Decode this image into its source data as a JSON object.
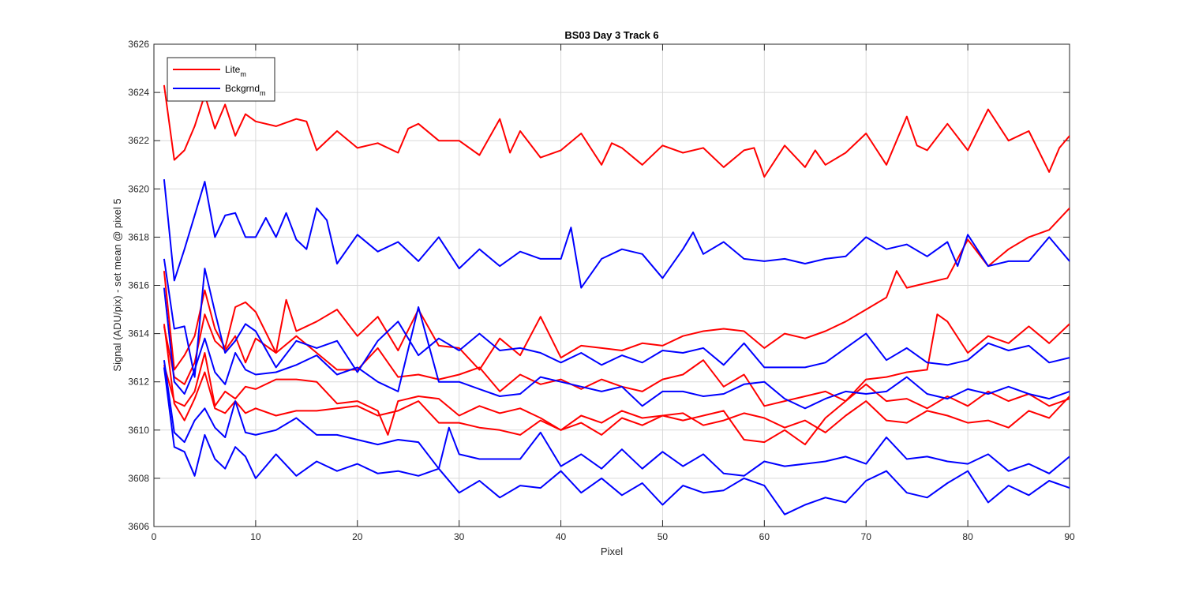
{
  "chart_data": {
    "type": "line",
    "title": "BS03 Day 3 Track 6",
    "xlabel": "Pixel",
    "ylabel": "Signal (ADU/pix) - set mean @ pixel 5",
    "xlim": [
      0,
      90
    ],
    "ylim": [
      3606,
      3626
    ],
    "xticks": [
      0,
      10,
      20,
      30,
      40,
      50,
      60,
      70,
      80,
      90
    ],
    "yticks": [
      3606,
      3608,
      3610,
      3612,
      3614,
      3616,
      3618,
      3620,
      3622,
      3624,
      3626
    ],
    "grid": true,
    "legend_position": "top-left",
    "legend": [
      {
        "label": "Lite",
        "sub": "m",
        "color": "#ff0000"
      },
      {
        "label": "Bckgrnd",
        "sub": "m",
        "color": "#0000ff"
      }
    ],
    "series": [
      {
        "group": "Lite",
        "color": "#ff0000",
        "x": [
          1,
          2,
          3,
          4,
          5,
          6,
          7,
          8,
          9,
          10,
          12,
          14,
          15,
          16,
          18,
          20,
          22,
          24,
          25,
          26,
          28,
          30,
          32,
          34,
          35,
          36,
          38,
          40,
          42,
          44,
          45,
          46,
          48,
          50,
          52,
          54,
          56,
          58,
          59,
          60,
          62,
          64,
          65,
          66,
          68,
          70,
          72,
          74,
          75,
          76,
          78,
          80,
          82,
          84,
          86,
          88,
          89,
          90
        ],
        "y": [
          3624.3,
          3621.2,
          3621.6,
          3622.6,
          3623.9,
          3622.5,
          3623.5,
          3622.2,
          3623.1,
          3622.8,
          3622.6,
          3622.9,
          3622.8,
          3621.6,
          3622.4,
          3621.7,
          3621.9,
          3621.5,
          3622.5,
          3622.7,
          3622.0,
          3622.0,
          3621.4,
          3622.9,
          3621.5,
          3622.4,
          3621.3,
          3621.6,
          3622.3,
          3621.0,
          3621.9,
          3621.7,
          3621.0,
          3621.8,
          3621.5,
          3621.7,
          3620.9,
          3621.6,
          3621.7,
          3620.5,
          3621.8,
          3620.9,
          3621.6,
          3621.0,
          3621.5,
          3622.3,
          3621.0,
          3623.0,
          3621.8,
          3621.6,
          3622.7,
          3621.6,
          3623.3,
          3622.0,
          3622.4,
          3620.7,
          3621.7,
          3622.2
        ]
      },
      {
        "group": "Lite",
        "color": "#ff0000",
        "x": [
          1,
          2,
          3,
          4,
          5,
          6,
          7,
          8,
          9,
          10,
          12,
          13,
          14,
          16,
          18,
          20,
          22,
          24,
          26,
          28,
          30,
          32,
          34,
          36,
          38,
          40,
          42,
          44,
          46,
          48,
          50,
          52,
          54,
          56,
          58,
          60,
          62,
          64,
          66,
          68,
          70,
          72,
          73,
          74,
          76,
          78,
          80,
          82,
          84,
          86,
          88,
          90
        ],
        "y": [
          3616.6,
          3612.5,
          3613.1,
          3613.9,
          3615.8,
          3614.2,
          3613.4,
          3615.1,
          3615.3,
          3614.9,
          3613.2,
          3615.4,
          3614.1,
          3614.5,
          3615.0,
          3613.9,
          3614.7,
          3613.3,
          3615.0,
          3613.5,
          3613.4,
          3612.5,
          3613.8,
          3613.1,
          3614.7,
          3613.0,
          3613.5,
          3613.4,
          3613.3,
          3613.6,
          3613.5,
          3613.9,
          3614.1,
          3614.2,
          3614.1,
          3613.4,
          3614.0,
          3613.8,
          3614.1,
          3614.5,
          3615.0,
          3615.5,
          3616.6,
          3615.9,
          3616.1,
          3616.3,
          3617.9,
          3616.8,
          3617.5,
          3618.0,
          3618.3,
          3619.2
        ]
      },
      {
        "group": "Lite",
        "color": "#ff0000",
        "x": [
          1,
          2,
          3,
          4,
          5,
          6,
          7,
          8,
          9,
          10,
          12,
          14,
          16,
          18,
          20,
          22,
          24,
          26,
          28,
          30,
          32,
          34,
          36,
          38,
          40,
          42,
          44,
          46,
          48,
          50,
          52,
          54,
          56,
          58,
          60,
          62,
          64,
          66,
          68,
          70,
          72,
          74,
          76,
          77,
          78,
          80,
          82,
          84,
          86,
          88,
          90
        ],
        "y": [
          3614.3,
          3612.2,
          3611.9,
          3612.8,
          3614.8,
          3613.7,
          3613.3,
          3613.9,
          3612.8,
          3613.8,
          3613.2,
          3613.9,
          3613.2,
          3612.5,
          3612.5,
          3613.4,
          3612.2,
          3612.3,
          3612.1,
          3612.3,
          3612.6,
          3611.6,
          3612.3,
          3611.9,
          3612.1,
          3611.7,
          3612.1,
          3611.8,
          3611.6,
          3612.1,
          3612.3,
          3612.9,
          3611.8,
          3612.3,
          3611.0,
          3611.2,
          3611.4,
          3611.6,
          3611.2,
          3612.1,
          3612.2,
          3612.4,
          3612.5,
          3614.8,
          3614.5,
          3613.2,
          3613.9,
          3613.6,
          3614.3,
          3613.6,
          3614.4
        ]
      },
      {
        "group": "Lite",
        "color": "#ff0000",
        "x": [
          1,
          2,
          3,
          4,
          5,
          6,
          7,
          8,
          9,
          10,
          12,
          14,
          16,
          18,
          20,
          22,
          23,
          24,
          26,
          28,
          30,
          32,
          34,
          36,
          38,
          40,
          42,
          44,
          46,
          48,
          50,
          52,
          54,
          56,
          58,
          60,
          62,
          64,
          66,
          68,
          70,
          72,
          74,
          76,
          78,
          80,
          82,
          84,
          86,
          88,
          90
        ],
        "y": [
          3612.7,
          3611.2,
          3611.0,
          3611.6,
          3613.2,
          3611.0,
          3611.6,
          3611.3,
          3611.8,
          3611.7,
          3612.1,
          3612.1,
          3612.0,
          3611.1,
          3611.2,
          3610.8,
          3609.8,
          3611.2,
          3611.4,
          3611.3,
          3610.6,
          3611.0,
          3610.7,
          3610.9,
          3610.5,
          3610.0,
          3610.6,
          3610.3,
          3610.8,
          3610.5,
          3610.6,
          3610.4,
          3610.6,
          3610.8,
          3609.6,
          3609.5,
          3610.0,
          3609.4,
          3610.5,
          3611.2,
          3611.9,
          3611.2,
          3611.3,
          3610.9,
          3611.4,
          3611.0,
          3611.6,
          3611.2,
          3611.5,
          3611.0,
          3611.3
        ]
      },
      {
        "group": "Lite",
        "color": "#ff0000",
        "x": [
          1,
          2,
          3,
          4,
          5,
          6,
          7,
          8,
          9,
          10,
          12,
          14,
          16,
          18,
          20,
          22,
          24,
          26,
          28,
          30,
          32,
          34,
          36,
          38,
          40,
          42,
          44,
          46,
          48,
          50,
          52,
          54,
          56,
          58,
          60,
          62,
          64,
          66,
          68,
          70,
          72,
          74,
          76,
          78,
          80,
          82,
          84,
          86,
          88,
          90
        ],
        "y": [
          3614.4,
          3611.1,
          3610.4,
          3611.3,
          3612.4,
          3610.9,
          3610.7,
          3611.2,
          3610.7,
          3610.9,
          3610.6,
          3610.8,
          3610.8,
          3610.9,
          3611.0,
          3610.6,
          3610.8,
          3611.2,
          3610.3,
          3610.3,
          3610.1,
          3610.0,
          3609.8,
          3610.4,
          3610.0,
          3610.3,
          3609.8,
          3610.5,
          3610.2,
          3610.6,
          3610.7,
          3610.2,
          3610.4,
          3610.7,
          3610.5,
          3610.1,
          3610.4,
          3609.9,
          3610.6,
          3611.2,
          3610.4,
          3610.3,
          3610.8,
          3610.6,
          3610.3,
          3610.4,
          3610.1,
          3610.8,
          3610.5,
          3611.4
        ]
      },
      {
        "group": "Bckgrnd",
        "color": "#0000ff",
        "x": [
          1,
          2,
          3,
          4,
          5,
          6,
          7,
          8,
          9,
          10,
          11,
          12,
          13,
          14,
          15,
          16,
          17,
          18,
          20,
          22,
          24,
          26,
          28,
          30,
          32,
          34,
          36,
          38,
          40,
          41,
          42,
          44,
          46,
          48,
          50,
          52,
          53,
          54,
          56,
          58,
          60,
          62,
          64,
          66,
          68,
          70,
          72,
          74,
          76,
          78,
          79,
          80,
          82,
          84,
          86,
          88,
          90
        ],
        "y": [
          3620.4,
          3616.2,
          3617.5,
          3618.9,
          3620.3,
          3618.0,
          3618.9,
          3619.0,
          3618.0,
          3618.0,
          3618.8,
          3618.0,
          3619.0,
          3617.9,
          3617.5,
          3619.2,
          3618.7,
          3616.9,
          3618.1,
          3617.4,
          3617.8,
          3617.0,
          3618.0,
          3616.7,
          3617.5,
          3616.8,
          3617.4,
          3617.1,
          3617.1,
          3618.4,
          3615.9,
          3617.1,
          3617.5,
          3617.3,
          3616.3,
          3617.5,
          3618.2,
          3617.3,
          3617.8,
          3617.1,
          3617.0,
          3617.1,
          3616.9,
          3617.1,
          3617.2,
          3618.0,
          3617.5,
          3617.7,
          3617.2,
          3617.8,
          3616.8,
          3618.1,
          3616.8,
          3617.0,
          3617.0,
          3618.0,
          3617.0
        ]
      },
      {
        "group": "Bckgrnd",
        "color": "#0000ff",
        "x": [
          1,
          2,
          3,
          4,
          5,
          6,
          7,
          8,
          9,
          10,
          12,
          14,
          16,
          18,
          20,
          22,
          24,
          26,
          28,
          30,
          32,
          34,
          36,
          38,
          40,
          42,
          44,
          46,
          48,
          50,
          52,
          54,
          56,
          58,
          60,
          62,
          64,
          66,
          68,
          70,
          72,
          74,
          76,
          78,
          80,
          82,
          84,
          86,
          88,
          90
        ],
        "y": [
          3617.1,
          3614.2,
          3614.3,
          3612.2,
          3616.7,
          3614.9,
          3613.2,
          3613.7,
          3614.4,
          3614.1,
          3612.6,
          3613.7,
          3613.4,
          3613.7,
          3612.4,
          3613.7,
          3614.5,
          3613.1,
          3613.8,
          3613.3,
          3614.0,
          3613.3,
          3613.4,
          3613.2,
          3612.8,
          3613.2,
          3612.7,
          3613.1,
          3612.8,
          3613.3,
          3613.2,
          3613.4,
          3612.7,
          3613.6,
          3612.6,
          3612.6,
          3612.6,
          3612.8,
          3613.4,
          3614.0,
          3612.9,
          3613.4,
          3612.8,
          3612.7,
          3612.9,
          3613.6,
          3613.3,
          3613.5,
          3612.8,
          3613.0
        ]
      },
      {
        "group": "Bckgrnd",
        "color": "#0000ff",
        "x": [
          1,
          2,
          3,
          4,
          5,
          6,
          7,
          8,
          9,
          10,
          12,
          14,
          16,
          18,
          20,
          22,
          24,
          26,
          28,
          30,
          32,
          34,
          36,
          38,
          40,
          42,
          44,
          46,
          48,
          50,
          52,
          54,
          56,
          58,
          60,
          62,
          64,
          66,
          68,
          70,
          72,
          74,
          76,
          78,
          80,
          82,
          84,
          86,
          88,
          90
        ],
        "y": [
          3615.9,
          3612.0,
          3611.5,
          3612.5,
          3613.8,
          3612.4,
          3611.9,
          3613.2,
          3612.5,
          3612.3,
          3612.4,
          3612.7,
          3613.1,
          3612.3,
          3612.6,
          3612.0,
          3611.6,
          3615.1,
          3612.0,
          3612.0,
          3611.7,
          3611.4,
          3611.5,
          3612.2,
          3612.0,
          3611.8,
          3611.6,
          3611.8,
          3611.0,
          3611.6,
          3611.6,
          3611.4,
          3611.5,
          3611.9,
          3612.0,
          3611.3,
          3610.9,
          3611.3,
          3611.6,
          3611.5,
          3611.6,
          3612.2,
          3611.5,
          3611.3,
          3611.7,
          3611.5,
          3611.8,
          3611.5,
          3611.3,
          3611.6
        ]
      },
      {
        "group": "Bckgrnd",
        "color": "#0000ff",
        "x": [
          1,
          2,
          3,
          4,
          5,
          6,
          7,
          8,
          9,
          10,
          12,
          14,
          16,
          18,
          20,
          22,
          24,
          26,
          28,
          29,
          30,
          32,
          34,
          36,
          38,
          40,
          42,
          44,
          46,
          48,
          50,
          52,
          54,
          56,
          58,
          60,
          62,
          64,
          66,
          68,
          70,
          72,
          74,
          76,
          78,
          80,
          82,
          84,
          86,
          88,
          90
        ],
        "y": [
          3612.9,
          3609.9,
          3609.5,
          3610.4,
          3610.9,
          3610.1,
          3609.7,
          3611.2,
          3609.9,
          3609.8,
          3610.0,
          3610.5,
          3609.8,
          3609.8,
          3609.6,
          3609.4,
          3609.6,
          3609.5,
          3608.4,
          3610.1,
          3609.0,
          3608.8,
          3608.8,
          3608.8,
          3609.9,
          3608.5,
          3609.0,
          3608.4,
          3609.2,
          3608.4,
          3609.1,
          3608.5,
          3609.0,
          3608.2,
          3608.1,
          3608.7,
          3608.5,
          3608.6,
          3608.7,
          3608.9,
          3608.6,
          3609.7,
          3608.8,
          3608.9,
          3608.7,
          3608.6,
          3609.0,
          3608.3,
          3608.6,
          3608.2,
          3608.9
        ]
      },
      {
        "group": "Bckgrnd",
        "color": "#0000ff",
        "x": [
          1,
          2,
          3,
          4,
          5,
          6,
          7,
          8,
          9,
          10,
          12,
          14,
          16,
          18,
          20,
          22,
          24,
          26,
          28,
          30,
          32,
          34,
          36,
          38,
          40,
          42,
          44,
          46,
          48,
          50,
          52,
          54,
          56,
          58,
          60,
          62,
          64,
          66,
          68,
          70,
          72,
          74,
          76,
          78,
          80,
          82,
          84,
          86,
          88,
          90
        ],
        "y": [
          3612.6,
          3609.3,
          3609.1,
          3608.1,
          3609.8,
          3608.8,
          3608.4,
          3609.3,
          3608.9,
          3608.0,
          3609.0,
          3608.1,
          3608.7,
          3608.3,
          3608.6,
          3608.2,
          3608.3,
          3608.1,
          3608.4,
          3607.4,
          3607.9,
          3607.2,
          3607.7,
          3607.6,
          3608.3,
          3607.4,
          3608.0,
          3607.3,
          3607.8,
          3606.9,
          3607.7,
          3607.4,
          3607.5,
          3608.0,
          3607.7,
          3606.5,
          3606.9,
          3607.2,
          3607.0,
          3607.9,
          3608.3,
          3607.4,
          3607.2,
          3607.8,
          3608.3,
          3607.0,
          3607.7,
          3607.3,
          3607.9,
          3607.6
        ]
      }
    ]
  }
}
